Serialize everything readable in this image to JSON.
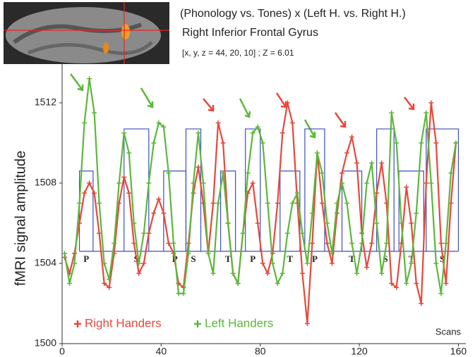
{
  "chart_data": {
    "type": "line",
    "title": "(Phonology vs. Tones) x (Left H. vs. Right H.)",
    "subtitle": "Right Inferior Frontal Gyrus",
    "annotation": "[x, y, z = 44, 20, 10] ; Z = 6.01",
    "y_label": "fMRI signal amplitude",
    "x_label": "Scans",
    "xlim": [
      0,
      163
    ],
    "ylim": [
      1500,
      1514
    ],
    "xticks": [
      0,
      40,
      80,
      120,
      160
    ],
    "yticks": [
      1500,
      1504,
      1508,
      1512
    ],
    "x": [
      1,
      3,
      5,
      7,
      9,
      11,
      13,
      15,
      17,
      19,
      21,
      23,
      25,
      27,
      29,
      31,
      33,
      35,
      37,
      39,
      41,
      43,
      45,
      47,
      49,
      51,
      53,
      55,
      57,
      59,
      61,
      63,
      65,
      67,
      69,
      71,
      73,
      75,
      77,
      79,
      81,
      83,
      85,
      87,
      89,
      91,
      93,
      95,
      97,
      99,
      101,
      103,
      105,
      107,
      109,
      111,
      113,
      115,
      117,
      119,
      121,
      123,
      125,
      127,
      129,
      131,
      133,
      135,
      137,
      139,
      141,
      143,
      145,
      147,
      149,
      151,
      153,
      155,
      157,
      159
    ],
    "series": [
      {
        "name": "Right Handers",
        "color": "#e8473a",
        "values": [
          1504.3,
          1503.5,
          1504.5,
          1506,
          1507.5,
          1508,
          1507.5,
          1505.5,
          1503,
          1502.8,
          1504.5,
          1507,
          1508.3,
          1507.5,
          1505,
          1503.5,
          1504,
          1505.5,
          1506.5,
          1507.2,
          1506.5,
          1505,
          1504.5,
          1503,
          1502.8,
          1505,
          1507.5,
          1508.8,
          1507,
          1504.5,
          1507,
          1511,
          1510,
          1506,
          1503.5,
          1503,
          1505.5,
          1507.5,
          1508,
          1506,
          1504,
          1503.5,
          1504.5,
          1507,
          1510.5,
          1512,
          1511,
          1507,
          1503.5,
          1501,
          1505,
          1509.5,
          1507,
          1505,
          1504,
          1506.5,
          1508.5,
          1509.5,
          1510.3,
          1509,
          1505.5,
          1503.8,
          1505,
          1507.5,
          1509,
          1507,
          1503,
          1502.8,
          1505,
          1507.8,
          1506,
          1503,
          1502,
          1508,
          1512,
          1510,
          1505,
          1503,
          1507,
          1510
        ]
      },
      {
        "name": "Left Handers",
        "color": "#5bb83a",
        "values": [
          1504.5,
          1503,
          1504,
          1507,
          1511,
          1513.2,
          1511.5,
          1507,
          1504,
          1503.2,
          1505,
          1508,
          1510.5,
          1509.5,
          1506,
          1504,
          1505.5,
          1508,
          1510,
          1511,
          1510.8,
          1508.5,
          1505,
          1502.5,
          1502.5,
          1504.5,
          1508,
          1510.5,
          1508,
          1504.5,
          1503.5,
          1507,
          1508.5,
          1506,
          1503.5,
          1503,
          1505.5,
          1508.5,
          1510.5,
          1510.8,
          1510,
          1507,
          1504,
          1503,
          1503.5,
          1505.5,
          1507,
          1507.5,
          1505.5,
          1504,
          1506.5,
          1509.5,
          1508.5,
          1506,
          1504.5,
          1507,
          1508,
          1507,
          1505,
          1503.5,
          1505,
          1508,
          1509,
          1506,
          1503.5,
          1505,
          1511.5,
          1510,
          1506,
          1503,
          1504,
          1506.5,
          1510,
          1511.5,
          1508,
          1504,
          1502.5,
          1505,
          1508.5,
          1510
        ]
      }
    ],
    "design_color": "#3a4fc4",
    "design_baseline": 1504.6,
    "blocks": [
      {
        "label": "P",
        "start": 7,
        "end": 12.5,
        "level": 1508.6
      },
      {
        "label": "S",
        "start": 25,
        "end": 35,
        "level": 1510.7
      },
      {
        "label": "P",
        "start": 41,
        "end": 50,
        "level": 1508.6
      },
      {
        "label": "S",
        "start": 50,
        "end": 56,
        "level": 1510.7
      },
      {
        "label": "T",
        "start": 64,
        "end": 70,
        "level": 1508.6
      },
      {
        "label": "P",
        "start": 74,
        "end": 80,
        "level": 1510.7
      },
      {
        "label": "T",
        "start": 88,
        "end": 96,
        "level": 1508.6
      },
      {
        "label": "P",
        "start": 98,
        "end": 106,
        "level": 1510.7
      },
      {
        "label": "T",
        "start": 113,
        "end": 121,
        "level": 1508.6
      },
      {
        "label": "S",
        "start": 127,
        "end": 134,
        "level": 1510.7
      },
      {
        "label": "T",
        "start": 136,
        "end": 146,
        "level": 1508.6
      },
      {
        "label": "S",
        "start": 147,
        "end": 160,
        "level": 1510.7
      }
    ]
  }
}
